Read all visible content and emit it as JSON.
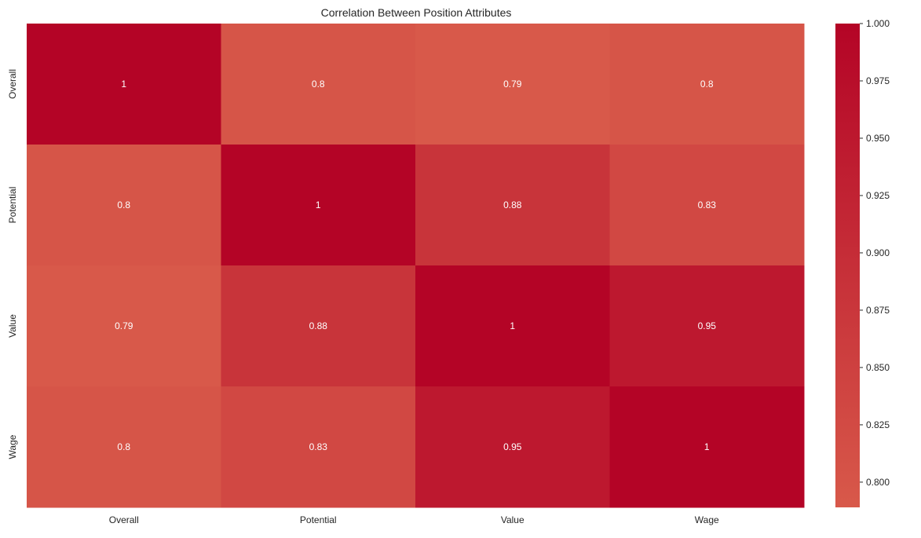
{
  "chart_data": {
    "type": "heatmap",
    "title": "Correlation Between Position Attributes",
    "xlabel": "",
    "ylabel": "",
    "x_categories": [
      "Overall",
      "Potential",
      "Value",
      "Wage"
    ],
    "y_categories": [
      "Overall",
      "Potential",
      "Value",
      "Wage"
    ],
    "values": [
      [
        1.0,
        0.8,
        0.79,
        0.8
      ],
      [
        0.8,
        1.0,
        0.88,
        0.83
      ],
      [
        0.79,
        0.88,
        1.0,
        0.95
      ],
      [
        0.8,
        0.83,
        0.95,
        1.0
      ]
    ],
    "annotations": [
      [
        "1",
        "0.8",
        "0.79",
        "0.8"
      ],
      [
        "0.8",
        "1",
        "0.88",
        "0.83"
      ],
      [
        "0.79",
        "0.88",
        "1",
        "0.95"
      ],
      [
        "0.8",
        "0.83",
        "0.95",
        "1"
      ]
    ],
    "colorbar": {
      "vmin": 0.789,
      "vmax": 1.0,
      "ticks": [
        0.8,
        0.825,
        0.85,
        0.875,
        0.9,
        0.925,
        0.95,
        0.975,
        1.0
      ],
      "tick_labels": [
        "0.800",
        "0.825",
        "0.850",
        "0.875",
        "0.900",
        "0.925",
        "0.950",
        "0.975",
        "1.000"
      ],
      "color_low": "#d8594a",
      "color_high": "#b40426"
    },
    "annotation_color": "#ffffff",
    "grid": false
  }
}
